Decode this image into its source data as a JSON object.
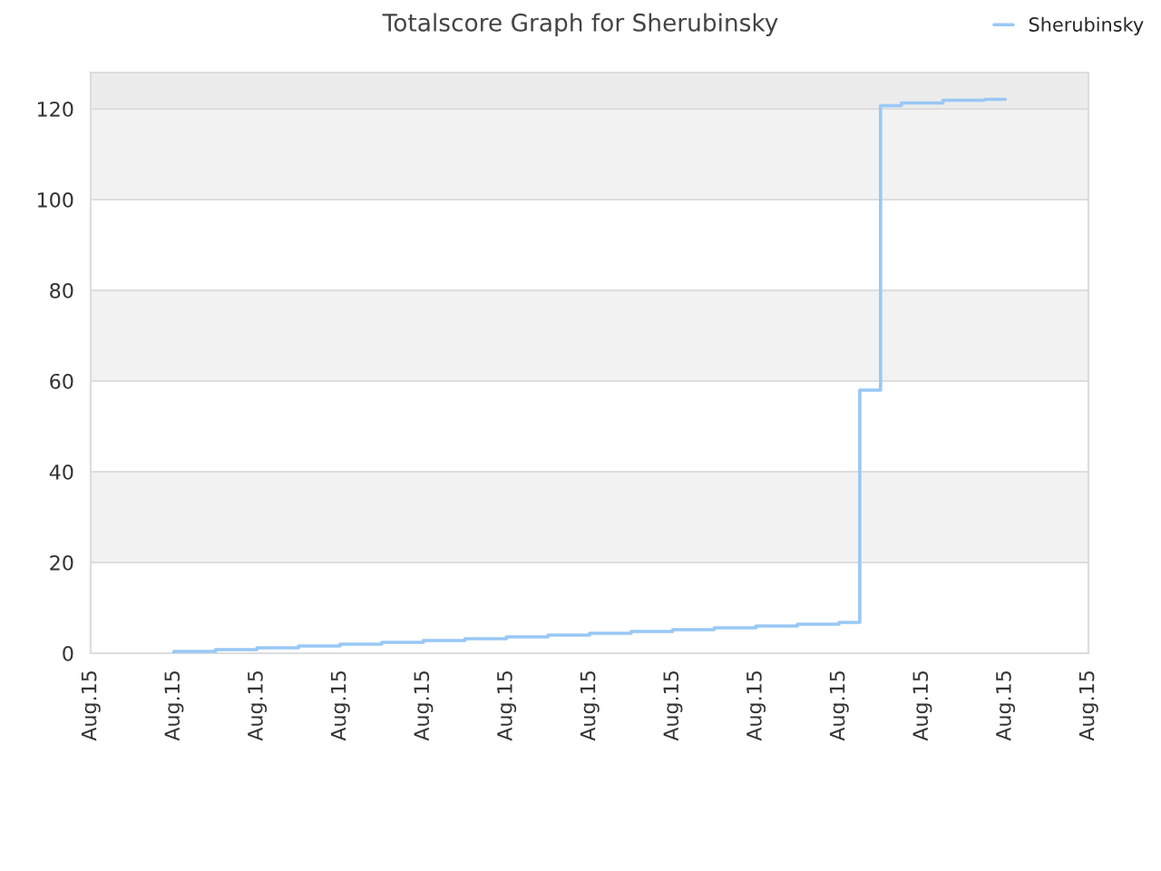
{
  "chart_data": {
    "type": "step",
    "title": "Totalscore Graph for Sherubinsky",
    "categories": [
      "Aug.15",
      null,
      null,
      null,
      "Aug.15",
      null,
      null,
      null,
      "Aug.15",
      null,
      null,
      null,
      "Aug.15",
      null,
      null,
      null,
      "Aug.15",
      null,
      null,
      null,
      "Aug.15",
      null,
      null,
      null,
      "Aug.15",
      null,
      null,
      null,
      "Aug.15",
      null,
      null,
      null,
      "Aug.15",
      null,
      null,
      null,
      "Aug.15",
      null,
      null,
      null,
      "Aug.15",
      null,
      null,
      null,
      "Aug.15",
      null,
      null,
      null,
      "Aug.15"
    ],
    "series": [
      {
        "name": "Sherubinsky",
        "color": "#99c8f5",
        "values": [
          null,
          null,
          null,
          null,
          0,
          0.4,
          0.4,
          0.8,
          0.8,
          1.2,
          1.2,
          1.6,
          1.6,
          2.0,
          2.0,
          2.4,
          2.4,
          2.8,
          2.8,
          3.2,
          3.2,
          3.6,
          3.6,
          4.0,
          4.0,
          4.4,
          4.4,
          4.8,
          4.8,
          5.2,
          5.2,
          5.6,
          5.6,
          6.0,
          6.0,
          6.4,
          6.4,
          6.8,
          58,
          120.7,
          121.3,
          121.3,
          121.9,
          121.9,
          122.1,
          null,
          null,
          null,
          null
        ]
      }
    ],
    "ylim": [
      0,
      128
    ],
    "yticks": [
      0,
      20,
      40,
      60,
      80,
      100,
      120
    ],
    "bands": [
      {
        "axis": "y",
        "from": 20,
        "to": 40,
        "color": "#f2f2f2"
      },
      {
        "axis": "y",
        "from": 60,
        "to": 80,
        "color": "#f2f2f2"
      },
      {
        "axis": "y",
        "from": 100,
        "to": 120,
        "color": "#f2f2f2"
      },
      {
        "axis": "y",
        "from": 120,
        "to": 128,
        "color": "#ececec"
      }
    ],
    "grid": "y",
    "legend": "top right"
  }
}
